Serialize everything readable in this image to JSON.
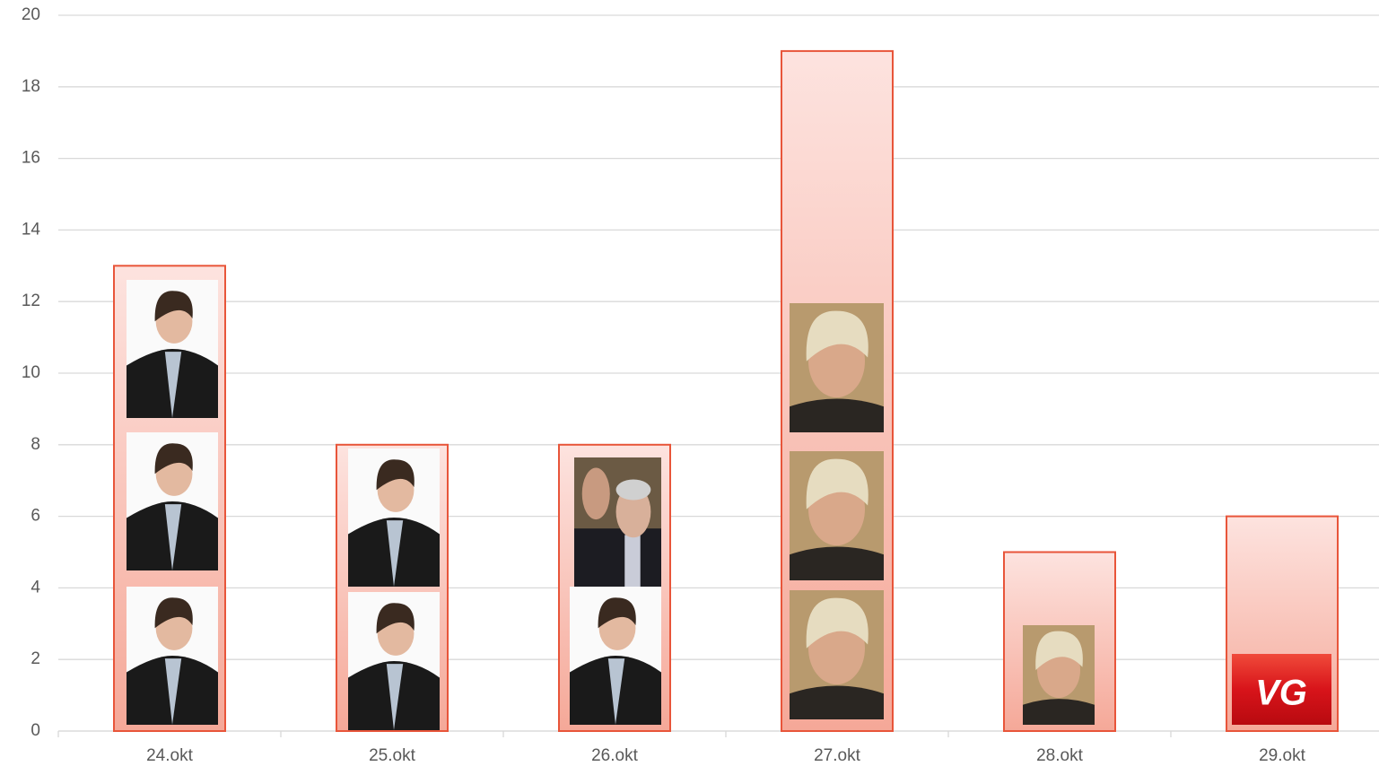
{
  "chart_data": {
    "type": "bar",
    "categories": [
      "24.okt",
      "25.okt",
      "26.okt",
      "27.okt",
      "28.okt",
      "29.okt"
    ],
    "values": [
      13,
      8,
      8,
      19,
      5,
      6
    ],
    "color": "#e8553a",
    "ylim": [
      0,
      20
    ],
    "yticks": [
      0,
      2,
      4,
      6,
      8,
      10,
      12,
      14,
      16,
      18,
      20
    ],
    "grid": true,
    "annotations": [
      "VG"
    ]
  }
}
